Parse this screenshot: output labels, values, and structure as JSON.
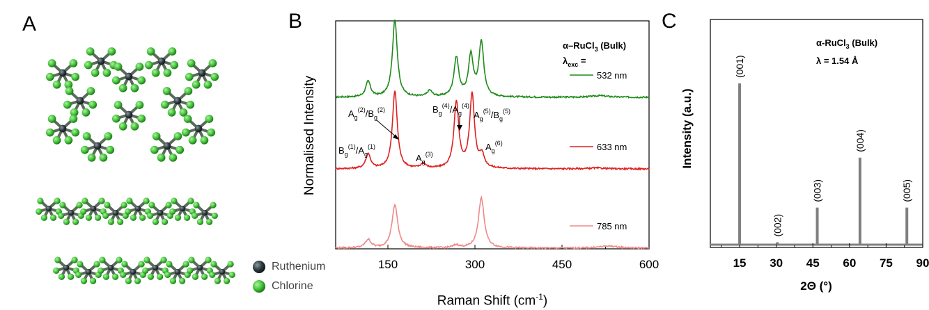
{
  "panels": {
    "a": "A",
    "b": "B",
    "c": "C"
  },
  "structure_legend": {
    "ruthenium": "Ruthenium",
    "chlorine": "Chlorine",
    "ruthenium_color": "#2e3a3f",
    "chlorine_color": "#44c43a"
  },
  "chart_data": [
    {
      "type": "line",
      "panel": "B",
      "xlabel": "Raman Shift (cm",
      "xlabel_sup": "-1",
      "xlabel_end": ")",
      "ylabel": "Normalised Intensity",
      "xlim": [
        60,
        600
      ],
      "xticks": [
        "150",
        "300",
        "450",
        "600"
      ],
      "xtick_values": [
        150,
        300,
        450,
        600
      ],
      "legend": {
        "sample_main": "α–RuCl",
        "sample_sub": "3",
        "sample_suffix": " (Bulk)",
        "lambda_main": "λ",
        "lambda_sub": "exc",
        "lambda_suffix": " ="
      },
      "series": [
        {
          "name": "532 nm",
          "color": "#1e8a1a",
          "peaks": [
            [
              116,
              0.2
            ],
            [
              162,
              1.0
            ],
            [
              222,
              0.08
            ],
            [
              268,
              0.5
            ],
            [
              293,
              0.52
            ],
            [
              311,
              0.7
            ],
            [
              515,
              0.02
            ]
          ]
        },
        {
          "name": "633 nm",
          "color": "#e02020",
          "peaks": [
            [
              116,
              0.18
            ],
            [
              162,
              0.95
            ],
            [
              211,
              0.06
            ],
            [
              268,
              0.8
            ],
            [
              295,
              0.9
            ],
            [
              312,
              0.15
            ],
            [
              510,
              0.01
            ]
          ]
        },
        {
          "name": "785 nm",
          "color": "#f08888",
          "peaks": [
            [
              116,
              0.12
            ],
            [
              162,
              0.62
            ],
            [
              268,
              0.04
            ],
            [
              311,
              0.72
            ],
            [
              530,
              0.03
            ]
          ]
        }
      ],
      "peak_labels": [
        {
          "base1": "B",
          "sub1": "g",
          "sup1": "(1)",
          "mid": "/",
          "base2": "A",
          "sub2": "g",
          "sup2": "(1)"
        },
        {
          "base1": "A",
          "sub1": "g",
          "sup1": "(2)",
          "mid": "/",
          "base2": "B",
          "sub2": "g",
          "sup2": "(2)"
        },
        {
          "base1": "A",
          "sub1": "g",
          "sup1": "(3)",
          "mid": "",
          "base2": "",
          "sub2": "",
          "sup2": ""
        },
        {
          "base1": "B",
          "sub1": "g",
          "sup1": "(4)",
          "mid": "/",
          "base2": "A",
          "sub2": "g",
          "sup2": "(4)"
        },
        {
          "base1": "A",
          "sub1": "g",
          "sup1": "(5)",
          "mid": "/",
          "base2": "B",
          "sub2": "g",
          "sup2": "(5)"
        },
        {
          "base1": "A",
          "sub1": "g",
          "sup1": "(6)",
          "mid": "",
          "base2": "",
          "sub2": "",
          "sup2": ""
        }
      ]
    },
    {
      "type": "bar",
      "panel": "C",
      "xlabel": "2Θ (°)",
      "ylabel": "Intensity (a.u.)",
      "xlim": [
        3,
        90
      ],
      "xticks": [
        "15",
        "30",
        "45",
        "60",
        "75",
        "90"
      ],
      "xtick_values": [
        15,
        30,
        45,
        60,
        75,
        90
      ],
      "color": "#808080",
      "legend": {
        "sample_main": "α-RuCl",
        "sample_sub": "3",
        "sample_suffix": " (Bulk)",
        "lambda": "λ = 1.54 Å"
      },
      "peaks": [
        {
          "x": 15.0,
          "value": 1.0,
          "label": "(001)"
        },
        {
          "x": 30.5,
          "value": 0.015,
          "label": "(002)"
        },
        {
          "x": 46.8,
          "value": 0.23,
          "label": "(003)"
        },
        {
          "x": 64.3,
          "value": 0.54,
          "label": "(004)"
        },
        {
          "x": 83.5,
          "value": 0.23,
          "label": "(005)"
        }
      ]
    }
  ]
}
